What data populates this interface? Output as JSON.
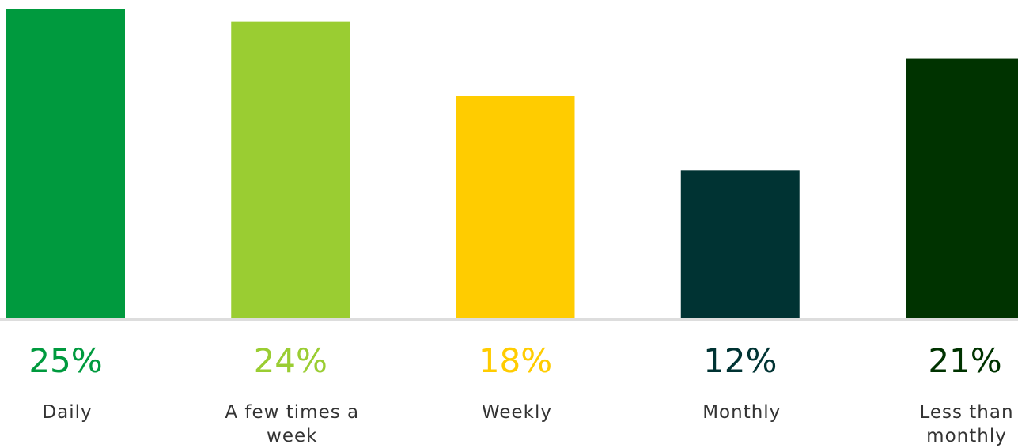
{
  "chart_data": {
    "type": "bar",
    "categories": [
      "Daily",
      "A few times a week",
      "Weekly",
      "Monthly",
      "Less than monthly"
    ],
    "values": [
      25,
      24,
      18,
      12,
      21
    ],
    "value_labels": [
      "25%",
      "24%",
      "18%",
      "12%",
      "21%"
    ],
    "colors": [
      "#009a3e",
      "#9acd32",
      "#ffcc00",
      "#003333",
      "#003300"
    ],
    "ylim": [
      0,
      25
    ]
  }
}
